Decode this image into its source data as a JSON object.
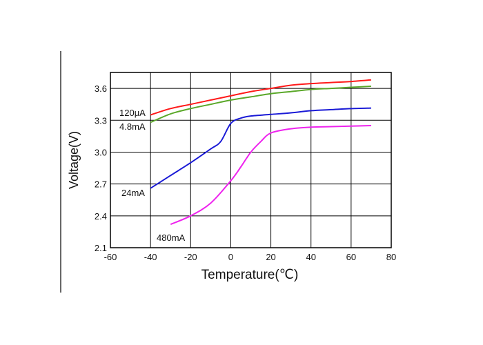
{
  "chart_data": {
    "type": "line",
    "xlabel": "Temperature(℃)",
    "ylabel": "Voltage(V)",
    "xlim": [
      -60,
      80
    ],
    "ylim": [
      2.1,
      3.75
    ],
    "xticks": [
      -60,
      -40,
      -20,
      0,
      20,
      40,
      60,
      80
    ],
    "yticks": [
      2.1,
      2.4,
      2.7,
      3.0,
      3.3,
      3.6
    ],
    "ytick_labels": [
      "2.1",
      "2.4",
      "2.7",
      "3.0",
      "3.3",
      "3.6"
    ],
    "grid": true,
    "legend": "none (inline labels at left end of each curve)",
    "series": [
      {
        "name": "120μA",
        "color": "#ff1a1a",
        "x": [
          -40,
          -30,
          -20,
          -10,
          0,
          10,
          20,
          30,
          40,
          50,
          60,
          70
        ],
        "y": [
          3.35,
          3.41,
          3.45,
          3.49,
          3.53,
          3.57,
          3.6,
          3.63,
          3.645,
          3.655,
          3.665,
          3.68
        ]
      },
      {
        "name": "4.8mA",
        "color": "#5aa829",
        "x": [
          -40,
          -30,
          -20,
          -10,
          0,
          10,
          20,
          30,
          40,
          50,
          60,
          70
        ],
        "y": [
          3.28,
          3.36,
          3.41,
          3.45,
          3.49,
          3.52,
          3.55,
          3.57,
          3.59,
          3.6,
          3.61,
          3.62
        ]
      },
      {
        "name": "24mA",
        "color": "#1a1ad6",
        "x": [
          -40,
          -30,
          -20,
          -10,
          -5,
          0,
          5,
          10,
          20,
          30,
          40,
          50,
          60,
          70
        ],
        "y": [
          2.66,
          2.78,
          2.9,
          3.03,
          3.1,
          3.27,
          3.32,
          3.34,
          3.355,
          3.37,
          3.39,
          3.4,
          3.41,
          3.415
        ]
      },
      {
        "name": "480mA",
        "color": "#ee22ee",
        "x": [
          -30,
          -20,
          -10,
          0,
          5,
          10,
          15,
          20,
          30,
          40,
          50,
          60,
          70
        ],
        "y": [
          2.32,
          2.4,
          2.52,
          2.73,
          2.86,
          3.0,
          3.1,
          3.18,
          3.22,
          3.235,
          3.24,
          3.245,
          3.25
        ]
      }
    ]
  }
}
